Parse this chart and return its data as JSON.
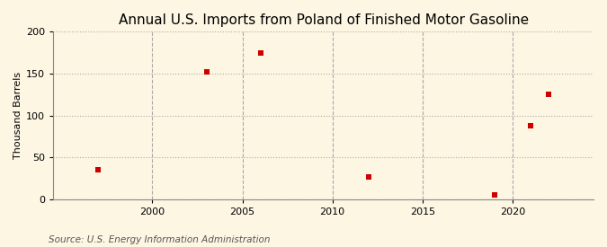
{
  "title": "Annual U.S. Imports from Poland of Finished Motor Gasoline",
  "ylabel": "Thousand Barrels",
  "source": "Source: U.S. Energy Information Administration",
  "xlim": [
    1994.5,
    2024.5
  ],
  "ylim": [
    0,
    200
  ],
  "xticks": [
    2000,
    2005,
    2010,
    2015,
    2020
  ],
  "yticks": [
    0,
    50,
    100,
    150,
    200
  ],
  "data_x": [
    1997,
    2003,
    2006,
    2012,
    2019,
    2021,
    2022
  ],
  "data_y": [
    35,
    152,
    175,
    27,
    5,
    88,
    125
  ],
  "marker_color": "#cc0000",
  "marker_shape": "s",
  "marker_size": 18,
  "background_color": "#fdf6e3",
  "grid_color": "#aaaaaa",
  "title_fontsize": 11,
  "label_fontsize": 8,
  "tick_fontsize": 8,
  "source_fontsize": 7.5
}
